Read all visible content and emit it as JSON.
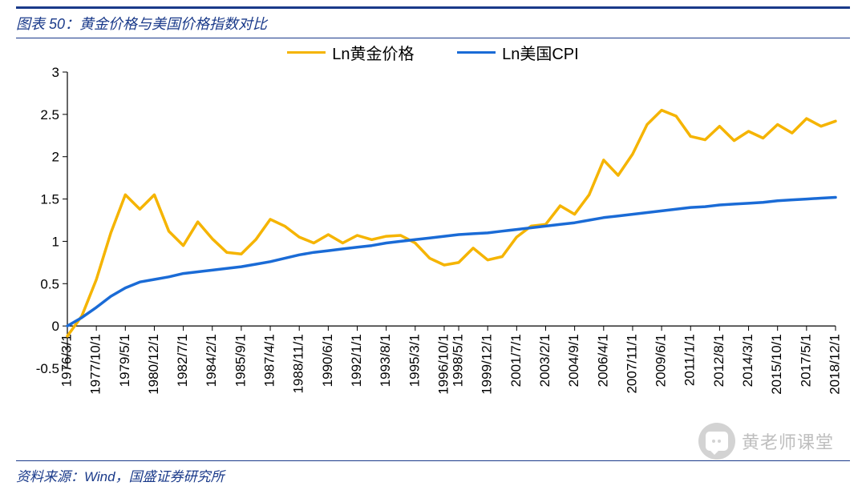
{
  "header": {
    "title": "图表 50：黄金价格与美国价格指数对比"
  },
  "footer": {
    "source": "资料来源：Wind，国盛证券研究所"
  },
  "watermark": {
    "text": "黄老师课堂"
  },
  "chart": {
    "type": "line",
    "background_color": "#ffffff",
    "axis_color": "#000000",
    "tick_color": "#000000",
    "label_fontsize": 17,
    "tick_fontsize": 17,
    "line_width": 3.5,
    "ylim": [
      -0.5,
      3.0
    ],
    "ytick_step": 0.5,
    "yticks": [
      "-0.5",
      "0",
      "0.5",
      "1",
      "1.5",
      "2",
      "2.5",
      "3"
    ],
    "x_labels": [
      "1976/3/1",
      "1977/10/1",
      "1979/5/1",
      "1980/12/1",
      "1982/7/1",
      "1984/2/1",
      "1985/9/1",
      "1987/4/1",
      "1988/11/1",
      "1990/6/1",
      "1992/1/1",
      "1993/8/1",
      "1995/3/1",
      "1996/10/1",
      "1998/5/1",
      "1999/12/1",
      "2001/7/1",
      "2003/2/1",
      "2004/9/1",
      "2006/4/1",
      "2007/11/1",
      "2009/6/1",
      "2011/1/1",
      "2012/8/1",
      "2014/3/1",
      "2015/10/1",
      "2017/5/1",
      "2018/12/1"
    ],
    "legend": {
      "position": "top-center",
      "items": [
        {
          "label": "Ln黄金价格",
          "color": "#f5b400"
        },
        {
          "label": "Ln美国CPI",
          "color": "#1a6bd6"
        }
      ]
    },
    "series": [
      {
        "name": "Ln黄金价格",
        "color": "#f5b400",
        "values": [
          -0.12,
          0.12,
          0.55,
          1.1,
          1.55,
          1.38,
          1.55,
          1.12,
          0.95,
          1.23,
          1.03,
          0.87,
          0.85,
          1.02,
          1.26,
          1.18,
          1.05,
          0.98,
          1.08,
          0.98,
          1.07,
          1.02,
          1.06,
          1.07,
          0.98,
          0.8,
          0.72,
          0.75,
          0.92,
          0.78,
          0.82,
          1.05,
          1.18,
          1.2,
          1.42,
          1.32,
          1.55,
          1.96,
          1.78,
          2.03,
          2.38,
          2.55,
          2.48,
          2.24,
          2.2,
          2.36,
          2.19,
          2.3,
          2.22,
          2.38,
          2.28,
          2.45,
          2.36,
          2.42
        ]
      },
      {
        "name": "Ln美国CPI",
        "color": "#1a6bd6",
        "values": [
          0.0,
          0.1,
          0.22,
          0.35,
          0.45,
          0.52,
          0.55,
          0.58,
          0.62,
          0.64,
          0.66,
          0.68,
          0.7,
          0.73,
          0.76,
          0.8,
          0.84,
          0.87,
          0.89,
          0.91,
          0.93,
          0.95,
          0.98,
          1.0,
          1.02,
          1.04,
          1.06,
          1.08,
          1.09,
          1.1,
          1.12,
          1.14,
          1.16,
          1.18,
          1.2,
          1.22,
          1.25,
          1.28,
          1.3,
          1.32,
          1.34,
          1.36,
          1.38,
          1.4,
          1.41,
          1.43,
          1.44,
          1.45,
          1.46,
          1.48,
          1.49,
          1.5,
          1.51,
          1.52
        ]
      }
    ]
  }
}
